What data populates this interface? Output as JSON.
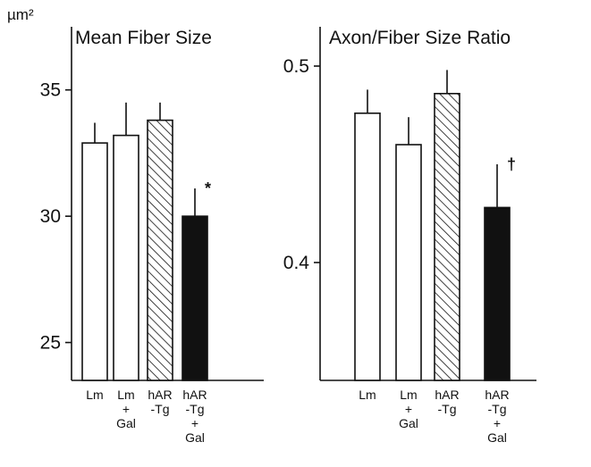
{
  "chart_data": [
    {
      "type": "bar",
      "title": "Mean Fiber Size",
      "ylabel": "µm²",
      "ylim": [
        23.5,
        37.5
      ],
      "yticks": [
        25,
        30,
        35
      ],
      "categories": [
        [
          "Lm"
        ],
        [
          "Lm",
          "+",
          "Gal"
        ],
        [
          "hAR",
          "-Tg"
        ],
        [
          "hAR",
          "-Tg",
          "+",
          "Gal"
        ]
      ],
      "bar_styles": [
        "open",
        "open",
        "hatched",
        "solid"
      ],
      "values": [
        32.9,
        33.2,
        33.8,
        30.0
      ],
      "errors": [
        0.8,
        1.3,
        0.7,
        1.1
      ],
      "annotations": [
        {
          "category_index": 3,
          "text": "*"
        }
      ]
    },
    {
      "type": "bar",
      "title": "Axon/Fiber Size Ratio",
      "ylabel": "",
      "ylim": [
        0.34,
        0.52
      ],
      "yticks": [
        0.4,
        0.5
      ],
      "categories": [
        [
          "Lm"
        ],
        [
          "Lm",
          "+",
          "Gal"
        ],
        [
          "hAR",
          "-Tg"
        ],
        [
          "hAR",
          "-Tg",
          "+",
          "Gal"
        ]
      ],
      "bar_styles": [
        "open",
        "open",
        "hatched",
        "solid"
      ],
      "values": [
        0.476,
        0.46,
        0.486,
        0.428
      ],
      "errors": [
        0.012,
        0.014,
        0.012,
        0.022
      ],
      "annotations": [
        {
          "category_index": 3,
          "text": "†"
        }
      ]
    }
  ]
}
